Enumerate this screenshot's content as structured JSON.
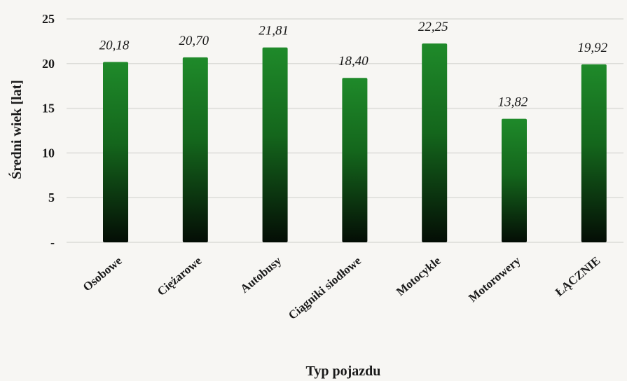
{
  "chart_data": {
    "type": "bar",
    "title": "",
    "xlabel": "Typ pojazdu",
    "ylabel": "Średni wiek [lat]",
    "categories": [
      "Osobowe",
      "Ciężarowe",
      "Autobusy",
      "Ciągniki siodłowe",
      "Motocykle",
      "Motorowery",
      "ŁĄCZNIE"
    ],
    "values": [
      20.18,
      20.7,
      21.81,
      18.4,
      22.25,
      13.82,
      19.92
    ],
    "value_labels": [
      "20,18",
      "20,70",
      "21,81",
      "18,40",
      "22,25",
      "13,82",
      "19,92"
    ],
    "yticks": [
      "-",
      "5",
      "10",
      "15",
      "20",
      "25"
    ],
    "ylim": [
      0,
      25
    ],
    "grid": true,
    "legend": "none",
    "colors": {
      "bar_top": "#1f8a2a",
      "bar_bottom": "#040d05",
      "grid": "#dcdcd8"
    }
  }
}
